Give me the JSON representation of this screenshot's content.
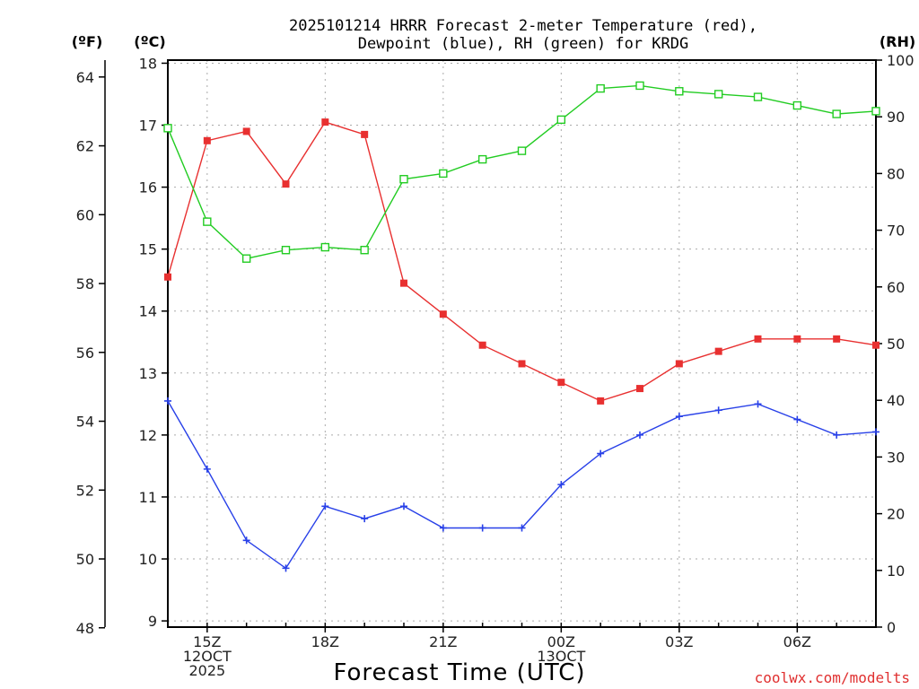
{
  "chart_data": {
    "type": "line",
    "title_line1": "2025101214 HRRR Forecast 2-meter Temperature (red),",
    "title_line2": "Dewpoint (blue), RH (green) for KRDG",
    "xlabel": "Forecast Time (UTC)",
    "credit": "coolwx.com/modelts",
    "left_outer_unit": "(ºF)",
    "left_inner_unit": "(ºC)",
    "right_unit": "(RH)",
    "x_hours": [
      14,
      15,
      16,
      17,
      18,
      19,
      20,
      21,
      22,
      23,
      24,
      25,
      26,
      27,
      28,
      29,
      30,
      31,
      32
    ],
    "xlim": [
      14,
      32
    ],
    "ylim_c": [
      8.9,
      18.05
    ],
    "ylim_rh": [
      0,
      100
    ],
    "c_ticks": [
      9,
      10,
      11,
      12,
      13,
      14,
      15,
      16,
      17,
      18
    ],
    "f_ticks": [
      48,
      50,
      52,
      54,
      56,
      58,
      60,
      62,
      64
    ],
    "rh_ticks": [
      0,
      10,
      20,
      30,
      40,
      50,
      60,
      70,
      80,
      90,
      100
    ],
    "x_ticks": [
      {
        "hour": 15,
        "lines": [
          "15Z",
          "12OCT",
          "2025"
        ]
      },
      {
        "hour": 18,
        "lines": [
          "18Z"
        ]
      },
      {
        "hour": 21,
        "lines": [
          "21Z"
        ]
      },
      {
        "hour": 24,
        "lines": [
          "00Z",
          "13OCT"
        ]
      },
      {
        "hour": 27,
        "lines": [
          "03Z"
        ]
      },
      {
        "hour": 30,
        "lines": [
          "06Z"
        ]
      }
    ],
    "series": [
      {
        "name": "2-meter Temperature",
        "units": "degC",
        "color": "#e83030",
        "marker": "filled-square",
        "axis": "c",
        "values": [
          14.55,
          16.75,
          16.9,
          16.05,
          17.05,
          16.85,
          14.45,
          13.95,
          13.45,
          13.15,
          12.85,
          12.55,
          12.75,
          13.15,
          13.35,
          13.55,
          13.55,
          13.55,
          13.45
        ]
      },
      {
        "name": "Dewpoint",
        "units": "degC",
        "color": "#2840e8",
        "marker": "plus",
        "axis": "c",
        "values": [
          12.55,
          11.45,
          10.3,
          9.85,
          10.85,
          10.65,
          10.85,
          10.5,
          10.5,
          10.5,
          11.2,
          11.7,
          12.0,
          12.3,
          12.4,
          12.5,
          12.25,
          12.0,
          12.05
        ]
      },
      {
        "name": "RH",
        "units": "percent",
        "color": "#22cc22",
        "marker": "open-square",
        "axis": "rh",
        "values": [
          88,
          71.5,
          65,
          66.5,
          67,
          66.5,
          79,
          80,
          82.5,
          84,
          89.5,
          95,
          95.5,
          94.5,
          94,
          93.5,
          92,
          90.5,
          91
        ]
      }
    ]
  }
}
